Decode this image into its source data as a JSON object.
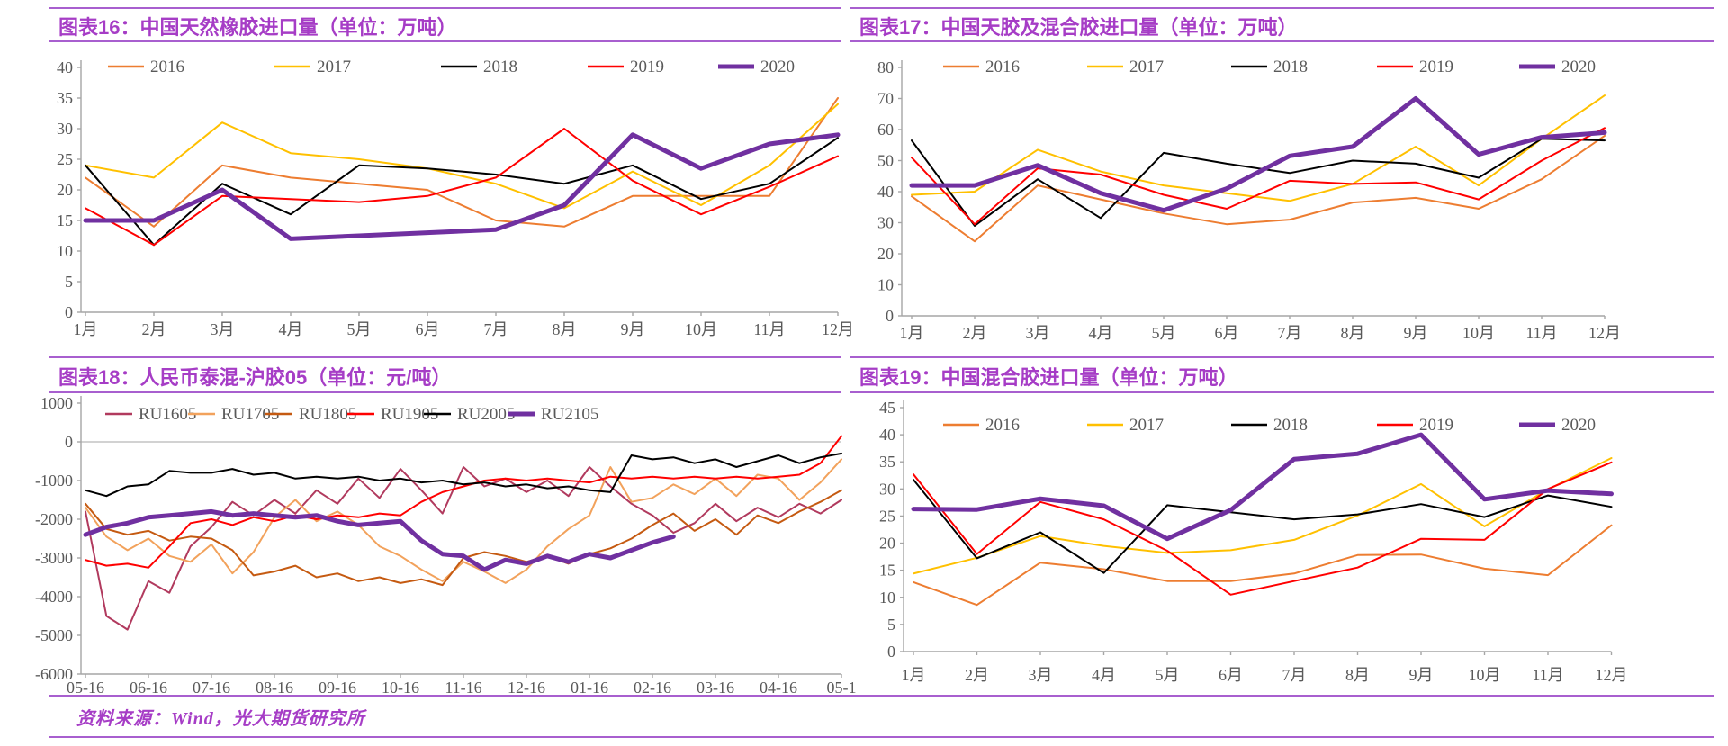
{
  "footer": {
    "text": "资料来源：Wind，光大期货研究所"
  },
  "colors": {
    "title_purple": "#A63DC6",
    "rule_purple": "#A85FCF",
    "axis_gray": "#A6A6A6",
    "label_gray": "#595959",
    "y2016": "#ED7D31",
    "y2017": "#FFC000",
    "y2018": "#000000",
    "y2019": "#FF0000",
    "y2020": "#7030A0",
    "RU1605": "#B13A5E",
    "RU1705": "#F2A25C",
    "RU1805": "#C55A11",
    "RU1905": "#FF0000",
    "RU2005": "#000000",
    "RU2105": "#7030A0"
  },
  "chart_data": [
    {
      "type": "line",
      "title": "图表16：中国天然橡胶进口量（单位：万吨）",
      "categories": [
        "1月",
        "2月",
        "3月",
        "4月",
        "5月",
        "6月",
        "7月",
        "8月",
        "9月",
        "10月",
        "11月",
        "12月"
      ],
      "ylim": [
        0,
        40
      ],
      "yticks": [
        40,
        35,
        30,
        25,
        20,
        15,
        10,
        5,
        0
      ],
      "grid": false,
      "legend_position": "top",
      "series": [
        {
          "name": "2016",
          "color": "#ED7D31",
          "width": 2,
          "values": [
            22,
            14,
            24,
            22,
            21,
            20,
            15,
            14,
            19,
            19,
            19,
            35
          ]
        },
        {
          "name": "2017",
          "color": "#FFC000",
          "width": 2,
          "values": [
            24,
            22,
            31,
            26,
            25,
            23.5,
            21,
            17,
            23,
            17.5,
            24,
            34
          ]
        },
        {
          "name": "2018",
          "color": "#000000",
          "width": 2,
          "values": [
            24,
            11,
            21,
            16,
            24,
            23.5,
            22.5,
            21,
            24,
            18.5,
            21,
            28.5
          ]
        },
        {
          "name": "2019",
          "color": "#FF0000",
          "width": 2,
          "values": [
            17,
            11,
            19,
            18.5,
            18,
            19,
            22,
            30,
            21.5,
            16,
            20.5,
            25.5
          ]
        },
        {
          "name": "2020",
          "color": "#7030A0",
          "width": 5,
          "values": [
            15,
            15,
            20,
            12,
            12.5,
            13,
            13.5,
            17.5,
            29,
            23.5,
            27.5,
            29
          ]
        }
      ]
    },
    {
      "type": "line",
      "title": "图表17：中国天胶及混合胶进口量（单位：万吨）",
      "categories": [
        "1月",
        "2月",
        "3月",
        "4月",
        "5月",
        "6月",
        "7月",
        "8月",
        "9月",
        "10月",
        "11月",
        "12月"
      ],
      "ylim": [
        0,
        80
      ],
      "yticks": [
        80,
        70,
        60,
        50,
        40,
        30,
        20,
        10,
        0
      ],
      "grid": false,
      "legend_position": "top",
      "series": [
        {
          "name": "2016",
          "color": "#ED7D31",
          "width": 2,
          "values": [
            38.5,
            24,
            42,
            37.5,
            33,
            29.5,
            31,
            36.5,
            38,
            34.5,
            44,
            58
          ]
        },
        {
          "name": "2017",
          "color": "#FFC000",
          "width": 2,
          "values": [
            39,
            40,
            53.5,
            46.5,
            42,
            39.5,
            37,
            42.5,
            54.5,
            42,
            57,
            71
          ]
        },
        {
          "name": "2018",
          "color": "#000000",
          "width": 2,
          "values": [
            56.5,
            29,
            44,
            31.5,
            52.5,
            49,
            46,
            50,
            49,
            44.5,
            57,
            56.5
          ]
        },
        {
          "name": "2019",
          "color": "#FF0000",
          "width": 2,
          "values": [
            51,
            29.5,
            47.5,
            45.5,
            39,
            34.5,
            43.5,
            42.5,
            43,
            37.5,
            50,
            60.5
          ]
        },
        {
          "name": "2020",
          "color": "#7030A0",
          "width": 5,
          "values": [
            42,
            42,
            48.5,
            39.5,
            34,
            41,
            51.5,
            54.5,
            70,
            52,
            57.5,
            59
          ]
        }
      ]
    },
    {
      "type": "line",
      "title": "图表18：人民币泰混-沪胶05（单位：元/吨）",
      "x_labels": [
        "05-16",
        "06-16",
        "07-16",
        "08-16",
        "09-16",
        "10-16",
        "11-16",
        "12-16",
        "01-16",
        "02-16",
        "03-16",
        "04-16",
        "05-1"
      ],
      "points_per_label": 3,
      "ylim": [
        -6000,
        1000
      ],
      "yticks": [
        1000,
        0,
        -1000,
        -2000,
        -3000,
        -4000,
        -5000,
        -6000
      ],
      "grid": false,
      "zero_line": true,
      "legend_position": "top",
      "series": [
        {
          "name": "RU1605",
          "color": "#B13A5E",
          "width": 2,
          "values": [
            -1800,
            -4500,
            -4850,
            -3600,
            -3900,
            -2700,
            -2200,
            -1550,
            -1900,
            -1500,
            -1850,
            -1250,
            -1600,
            -950,
            -1450,
            -700,
            -1250,
            -1850,
            -650,
            -1150,
            -950,
            -1300,
            -1000,
            -1400,
            -650,
            -1150,
            -1600,
            -1900,
            -2350,
            -2100,
            -1600,
            -2050,
            -1700,
            -1950,
            -1600,
            -1850,
            -1500
          ]
        },
        {
          "name": "RU1705",
          "color": "#F2A25C",
          "width": 2,
          "values": [
            -1700,
            -2450,
            -2800,
            -2500,
            -2950,
            -3100,
            -2650,
            -3400,
            -2850,
            -1950,
            -1500,
            -2050,
            -1800,
            -2150,
            -2700,
            -2950,
            -3300,
            -3600,
            -3100,
            -3350,
            -3650,
            -3300,
            -2700,
            -2250,
            -1900,
            -650,
            -1550,
            -1450,
            -1100,
            -1350,
            -950,
            -1400,
            -850,
            -950,
            -1500,
            -1050,
            -450
          ]
        },
        {
          "name": "RU1805",
          "color": "#C55A11",
          "width": 2,
          "values": [
            -1600,
            -2250,
            -2400,
            -2300,
            -2550,
            -2450,
            -2500,
            -2800,
            -3450,
            -3350,
            -3200,
            -3500,
            -3400,
            -3600,
            -3500,
            -3650,
            -3550,
            -3700,
            -3000,
            -2850,
            -2950,
            -3100,
            -2950,
            -3150,
            -2900,
            -2750,
            -2500,
            -2150,
            -1850,
            -2300,
            -2000,
            -2400,
            -1900,
            -2100,
            -1800,
            -1550,
            -1250
          ]
        },
        {
          "name": "RU1905",
          "color": "#FF0000",
          "width": 2,
          "values": [
            -3050,
            -3200,
            -3150,
            -3250,
            -2700,
            -2100,
            -2000,
            -2150,
            -1950,
            -2050,
            -1900,
            -2000,
            -1900,
            -1950,
            -1850,
            -1900,
            -1550,
            -1300,
            -1150,
            -1000,
            -950,
            -1000,
            -950,
            -1000,
            -1050,
            -900,
            -950,
            -900,
            -950,
            -900,
            -950,
            -900,
            -950,
            -900,
            -850,
            -550,
            150
          ]
        },
        {
          "name": "RU2005",
          "color": "#000000",
          "width": 2,
          "values": [
            -1250,
            -1400,
            -1150,
            -1100,
            -750,
            -800,
            -800,
            -700,
            -850,
            -800,
            -950,
            -900,
            -950,
            -900,
            -1000,
            -950,
            -1050,
            -1000,
            -1100,
            -1050,
            -1150,
            -1100,
            -1200,
            -1150,
            -1250,
            -1300,
            -350,
            -450,
            -400,
            -550,
            -450,
            -650,
            -500,
            -350,
            -550,
            -400,
            -300
          ]
        },
        {
          "name": "RU2105",
          "color": "#7030A0",
          "width": 5,
          "values": [
            -2400,
            -2200,
            -2100,
            -1950,
            -1900,
            -1850,
            -1800,
            -1900,
            -1850,
            -1900,
            -1950,
            -1900,
            -2050,
            -2150,
            -2100,
            -2050,
            -2550,
            -2900,
            -2950,
            -3300,
            -3050,
            -3150,
            -2950,
            -3100,
            -2900,
            -3000,
            -2800,
            -2600,
            -2450
          ]
        }
      ]
    },
    {
      "type": "line",
      "title": "图表19：中国混合胶进口量（单位：万吨）",
      "categories": [
        "1月",
        "2月",
        "3月",
        "4月",
        "5月",
        "6月",
        "7月",
        "8月",
        "9月",
        "10月",
        "11月",
        "12月"
      ],
      "ylim": [
        0,
        45
      ],
      "yticks": [
        45,
        40,
        35,
        30,
        25,
        20,
        15,
        10,
        5,
        0
      ],
      "grid": false,
      "legend_position": "top",
      "series": [
        {
          "name": "2016",
          "color": "#ED7D31",
          "width": 2,
          "values": [
            12.8,
            8.6,
            16.4,
            15.2,
            13,
            13,
            14.4,
            17.8,
            17.9,
            15.3,
            14.1,
            23.3
          ]
        },
        {
          "name": "2017",
          "color": "#FFC000",
          "width": 2,
          "values": [
            14.4,
            17.3,
            21.3,
            19.5,
            18.2,
            18.7,
            20.6,
            25.1,
            30.9,
            23.1,
            29.9,
            35.7
          ]
        },
        {
          "name": "2018",
          "color": "#000000",
          "width": 2,
          "values": [
            31.7,
            17.2,
            22,
            14.5,
            27,
            25.7,
            24.4,
            25.3,
            27.2,
            24.8,
            28.8,
            26.7
          ]
        },
        {
          "name": "2019",
          "color": "#FF0000",
          "width": 2,
          "values": [
            32.7,
            18,
            27.6,
            24.4,
            18.6,
            10.5,
            13,
            15.5,
            20.8,
            20.6,
            30,
            34.9
          ]
        },
        {
          "name": "2020",
          "color": "#7030A0",
          "width": 5,
          "values": [
            26.3,
            26.2,
            28.2,
            26.9,
            20.8,
            26.1,
            35.5,
            36.5,
            40,
            28.1,
            29.7,
            29.1
          ]
        }
      ]
    }
  ]
}
